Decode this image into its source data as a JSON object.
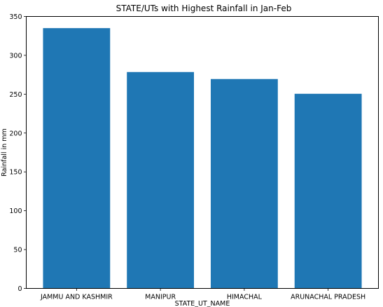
{
  "chart_data": {
    "type": "bar",
    "title": "STATE/UTs with Highest Rainfall in Jan-Feb",
    "xlabel": "STATE_UT_NAME",
    "ylabel": "Rainfall in mm",
    "categories": [
      "JAMMU AND KASHMIR",
      "MANIPUR",
      "HIMACHAL",
      "ARUNACHAL PRADESH"
    ],
    "values": [
      335.0,
      278.5,
      269.5,
      250.5
    ],
    "ylim": [
      0,
      350
    ],
    "yticks": [
      0,
      50,
      100,
      150,
      200,
      250,
      300,
      350
    ],
    "bar_color": "#1f77b4",
    "grid": false,
    "legend": "none"
  }
}
